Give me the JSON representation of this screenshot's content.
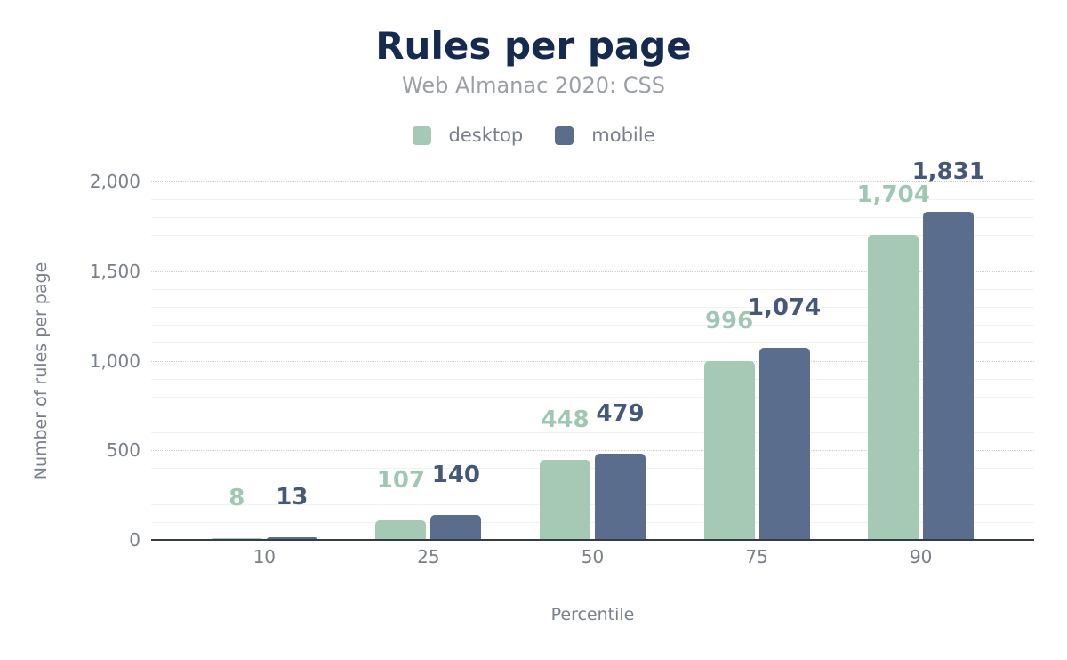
{
  "header": {
    "title": "Rules per page",
    "subtitle": "Web Almanac 2020: CSS"
  },
  "axes": {
    "y_title": "Number of rules per page",
    "x_title": "Percentile",
    "y_ticks": [
      {
        "value": 0,
        "label": "0"
      },
      {
        "value": 500,
        "label": "500"
      },
      {
        "value": 1000,
        "label": "1,000"
      },
      {
        "value": 1500,
        "label": "1,500"
      },
      {
        "value": 2000,
        "label": "2,000"
      }
    ]
  },
  "chart_data": {
    "type": "bar",
    "title": "Rules per page",
    "subtitle": "Web Almanac 2020: CSS",
    "xlabel": "Percentile",
    "ylabel": "Number of rules per page",
    "categories": [
      "10",
      "25",
      "50",
      "75",
      "90"
    ],
    "series": [
      {
        "name": "desktop",
        "color": "#a5c9b4",
        "label_color": "#9fc7b1",
        "values": [
          8,
          107,
          448,
          996,
          1704
        ],
        "value_labels": [
          "8",
          "107",
          "448",
          "996",
          "1,704"
        ]
      },
      {
        "name": "mobile",
        "color": "#5a6d8d",
        "label_color": "#46587a",
        "values": [
          13,
          140,
          479,
          1074,
          1831
        ],
        "value_labels": [
          "13",
          "140",
          "479",
          "1,074",
          "1,831"
        ]
      }
    ],
    "ylim": [
      0,
      2000
    ],
    "grid": {
      "minor_step": 100,
      "major_step": 500
    },
    "legend_position": "top-center"
  },
  "colors": {
    "background": "#ffffff",
    "title": "#16294e",
    "subtitle": "#9aa0a6",
    "axis_text": "#79808a",
    "axis_line": "#343d47",
    "grid_minor": "#f2f2f2",
    "grid_major": "#cccfd1"
  }
}
